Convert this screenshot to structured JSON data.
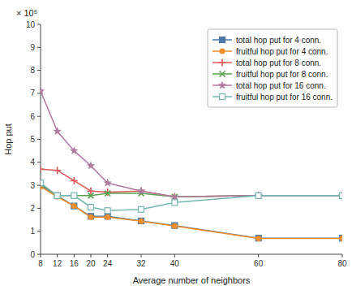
{
  "chart_data": {
    "type": "line",
    "x": [
      8,
      12,
      16,
      20,
      24,
      32,
      40,
      60,
      80
    ],
    "xlabel": "Average number of neighbors",
    "ylabel": "Hop put",
    "annotation": "× 10⁵",
    "xlim": [
      8,
      80
    ],
    "ylim": [
      0,
      10
    ],
    "xticks": [
      8,
      12,
      16,
      20,
      24,
      32,
      40,
      60,
      80
    ],
    "yticks": [
      0,
      1,
      2,
      3,
      4,
      5,
      6,
      7,
      8,
      9,
      10
    ],
    "grid": false,
    "legend": "upper right",
    "series": [
      {
        "name": "total hop put for 4 conn.",
        "marker": "square",
        "values": [
          3.0,
          2.55,
          2.1,
          1.65,
          1.65,
          1.45,
          1.25,
          0.7,
          0.7
        ]
      },
      {
        "name": "fruitful hop put for 4 conn.",
        "marker": "circle",
        "values": [
          2.95,
          2.5,
          2.1,
          1.62,
          1.62,
          1.44,
          1.23,
          0.69,
          0.69
        ]
      },
      {
        "name": "total hop put for 8 conn.",
        "marker": "plus",
        "values": [
          3.7,
          3.65,
          3.2,
          2.75,
          2.7,
          2.75,
          2.5,
          2.55,
          2.55
        ]
      },
      {
        "name": "fruitful hop put for 8 conn.",
        "marker": "x",
        "values": [
          3.05,
          2.55,
          2.55,
          2.55,
          2.65,
          2.65,
          2.5,
          2.55,
          2.55
        ]
      },
      {
        "name": "total hop put for 16 conn.",
        "marker": "star",
        "values": [
          7.1,
          5.35,
          4.5,
          3.85,
          3.1,
          2.75,
          2.5,
          2.55,
          2.55
        ]
      },
      {
        "name": "fruitful hop put for 16 conn.",
        "marker": "square-open",
        "values": [
          3.1,
          2.55,
          2.55,
          2.05,
          1.9,
          1.95,
          2.25,
          2.55,
          2.55
        ]
      }
    ]
  }
}
